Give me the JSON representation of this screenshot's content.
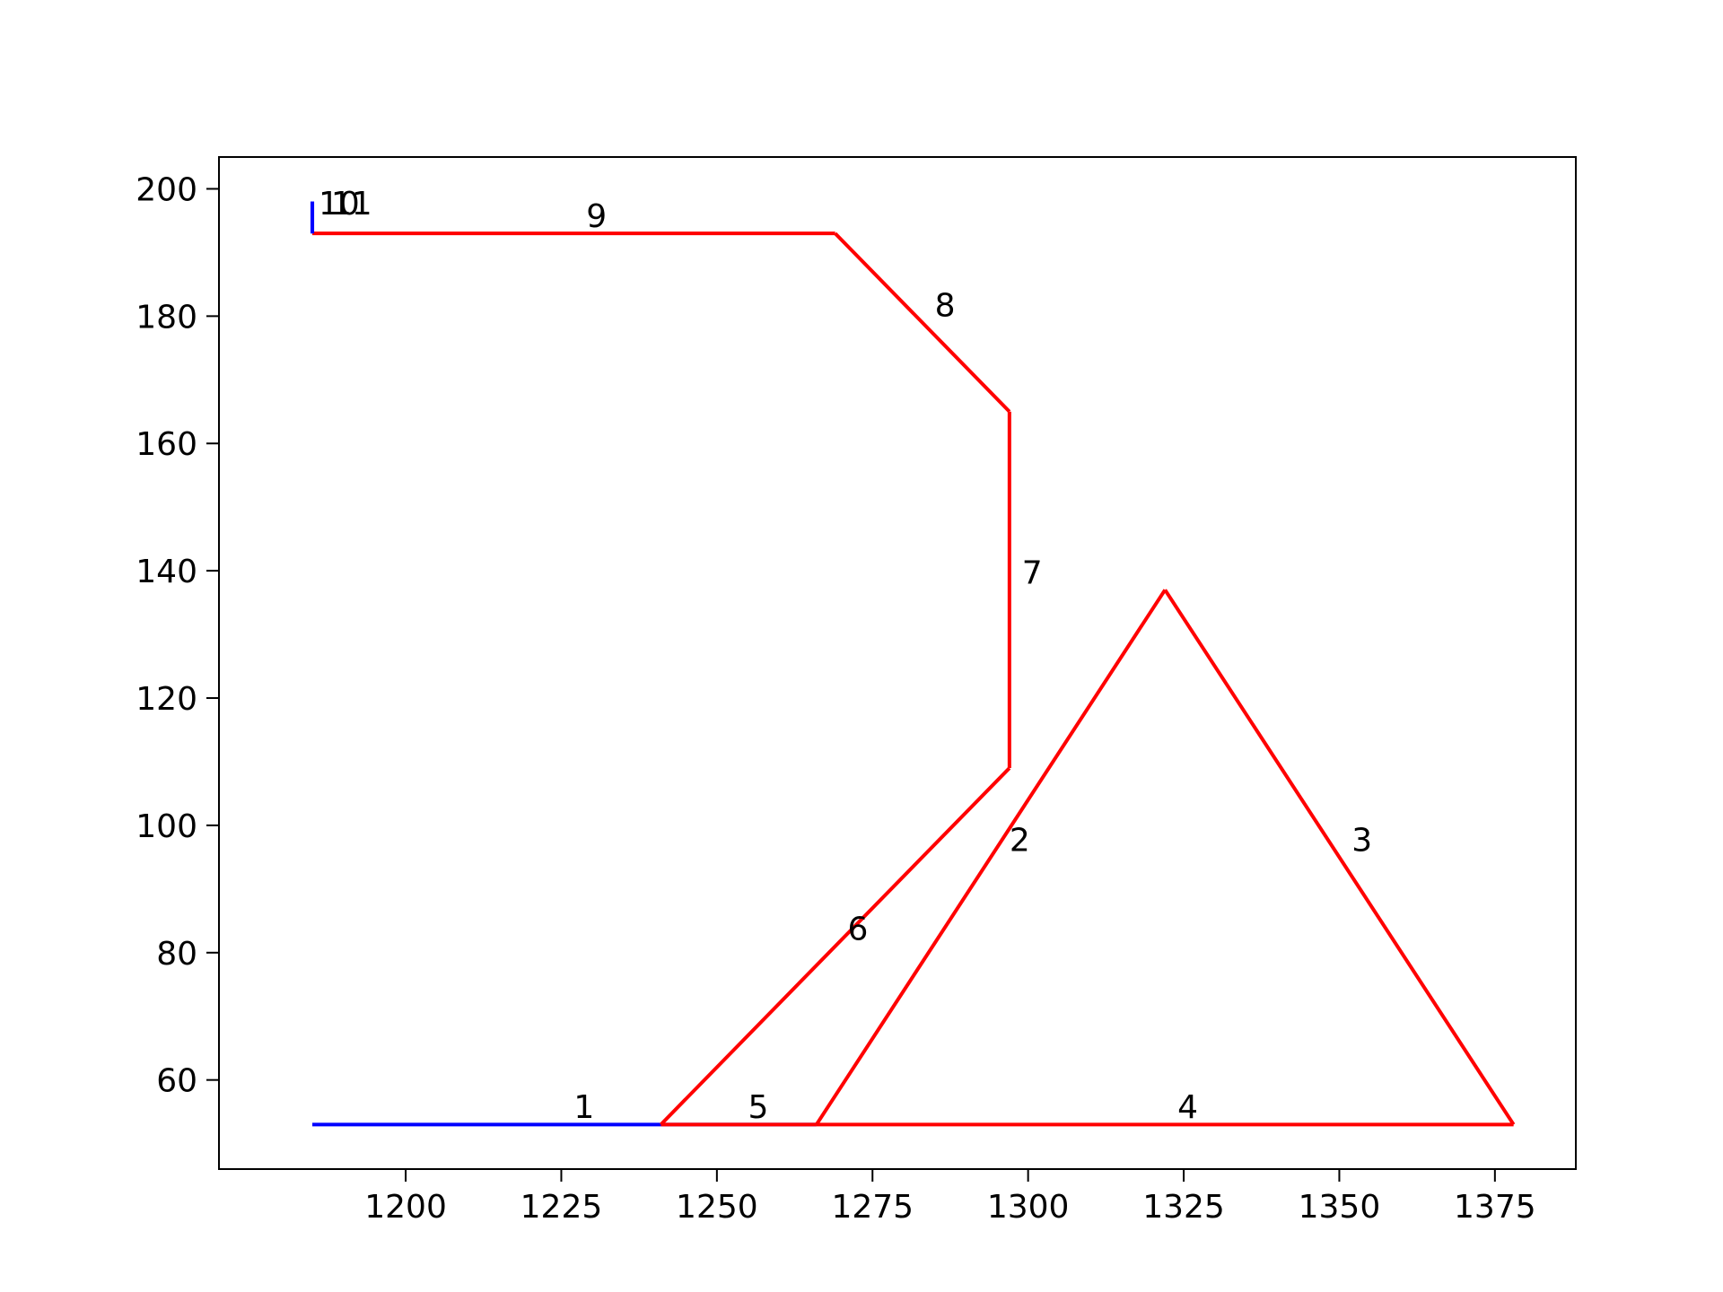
{
  "chart_data": {
    "type": "line",
    "title": "",
    "xlabel": "",
    "ylabel": "",
    "xlim": [
      1170,
      1388
    ],
    "ylim": [
      46,
      205
    ],
    "x_ticks": [
      1200,
      1225,
      1250,
      1275,
      1300,
      1325,
      1350,
      1375
    ],
    "y_ticks": [
      60,
      80,
      100,
      120,
      140,
      160,
      180,
      200
    ],
    "grid": false,
    "segments": [
      {
        "label": "1",
        "color": "#0000ff",
        "points": [
          [
            1185,
            53
          ],
          [
            1266,
            53
          ]
        ],
        "label_pos": [
          1227,
          54
        ]
      },
      {
        "label": "2",
        "color": "#ff0000",
        "points": [
          [
            1266,
            53
          ],
          [
            1322,
            137
          ]
        ],
        "label_pos": [
          1297,
          96
        ]
      },
      {
        "label": "3",
        "color": "#ff0000",
        "points": [
          [
            1322,
            137
          ],
          [
            1378,
            53
          ]
        ],
        "label_pos": [
          1352,
          96
        ]
      },
      {
        "label": "4",
        "color": "#ff0000",
        "points": [
          [
            1378,
            53
          ],
          [
            1266,
            53
          ]
        ],
        "label_pos": [
          1324,
          54
        ]
      },
      {
        "label": "5",
        "color": "#ff0000",
        "points": [
          [
            1266,
            53
          ],
          [
            1241,
            53
          ]
        ],
        "label_pos": [
          1255,
          54
        ]
      },
      {
        "label": "6",
        "color": "#ff0000",
        "points": [
          [
            1241,
            53
          ],
          [
            1297,
            109
          ]
        ],
        "label_pos": [
          1271,
          82
        ]
      },
      {
        "label": "7",
        "color": "#ff0000",
        "points": [
          [
            1297,
            109
          ],
          [
            1297,
            165
          ]
        ],
        "label_pos": [
          1299,
          138
        ]
      },
      {
        "label": "8",
        "color": "#ff0000",
        "points": [
          [
            1297,
            165
          ],
          [
            1269,
            193
          ]
        ],
        "label_pos": [
          1285,
          180
        ]
      },
      {
        "label": "9",
        "color": "#ff0000",
        "points": [
          [
            1269,
            193
          ],
          [
            1185,
            193
          ]
        ],
        "label_pos": [
          1229,
          194
        ]
      },
      {
        "label": "10",
        "color": "#0000ff",
        "points": [
          [
            1185,
            193
          ],
          [
            1185,
            198
          ]
        ],
        "label_pos": [
          1186,
          196
        ]
      },
      {
        "label": "11",
        "color": "#0000ff",
        "points": [
          [
            1185,
            193
          ],
          [
            1185,
            198
          ]
        ],
        "label_pos": [
          1188,
          196
        ]
      }
    ]
  }
}
